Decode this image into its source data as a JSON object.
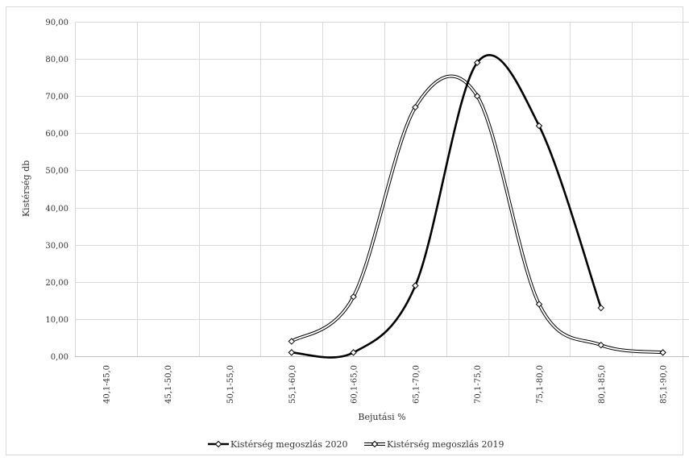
{
  "chart_data": {
    "type": "line",
    "title": "",
    "xlabel": "Bejutási %",
    "ylabel": "Kistérség db",
    "ylim": [
      0,
      90
    ],
    "yticks": [
      "0,00",
      "10,00",
      "20,00",
      "30,00",
      "40,00",
      "50,00",
      "60,00",
      "70,00",
      "80,00",
      "90,00"
    ],
    "categories": [
      "40,1-45,0",
      "45,1-50,0",
      "50,1-55,0",
      "55,1-60,0",
      "60,1-65,0",
      "65,1-70,0",
      "70,1-75,0",
      "75,1-80,0",
      "80,1-85,0",
      "85,1-90,0"
    ],
    "grid": true,
    "legend_position": "bottom",
    "series": [
      {
        "name": "Kistérség megoszlás 2020",
        "style": "thick-black",
        "values": [
          null,
          null,
          null,
          1,
          1,
          19,
          79,
          62,
          13,
          null
        ]
      },
      {
        "name": "Kistérség megoszlás 2019",
        "style": "double-outline",
        "values": [
          null,
          null,
          null,
          4,
          16,
          67,
          70,
          14,
          3,
          1
        ]
      }
    ]
  }
}
